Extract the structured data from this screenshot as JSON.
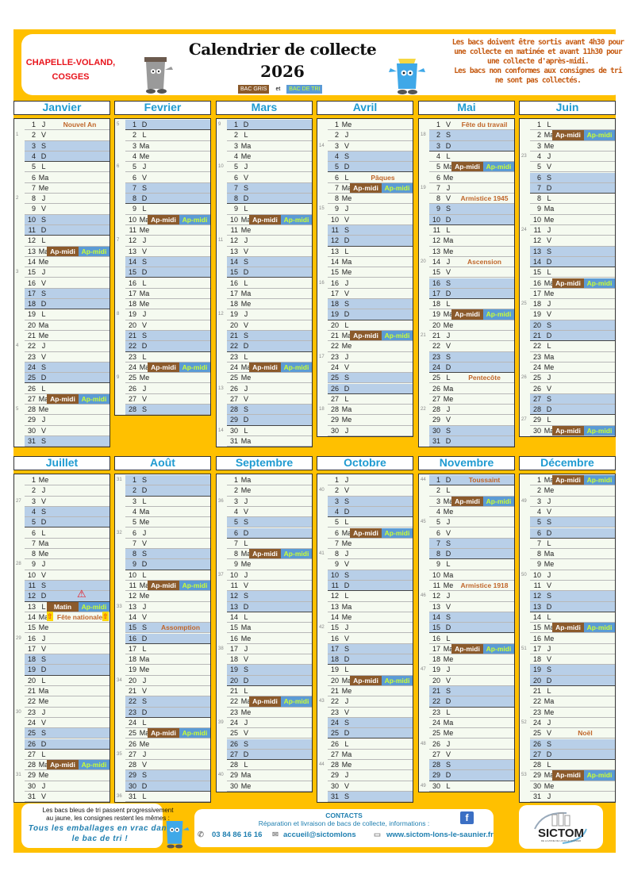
{
  "header": {
    "commune_line1": "CHAPELLE-VOLAND,",
    "commune_line2": "COSGES",
    "title": "Calendrier de collecte",
    "year": "2026",
    "legend_gris": "BAC GRIS",
    "legend_et": "et",
    "legend_tri": "BAC DE TRI",
    "notice": [
      "Les bacs doivent être sortis avant 4h30 pour",
      "une collecte en matinée et avant 11h30 pour",
      "une collecte d'après-midi.",
      "Les bacs non conformes aux consignes de tri",
      "ne sont pas collectés."
    ]
  },
  "colors": {
    "frame": "#ffc000",
    "bac_gris": "#8b5a2b",
    "bac_tri": "#5b9bd5",
    "weekend": "#b8cfe8",
    "holiday": "#c0662a",
    "month_title": "#1f9bd1"
  },
  "weekdays": [
    "L",
    "Ma",
    "Me",
    "J",
    "V",
    "S",
    "D"
  ],
  "months": [
    {
      "name": "Janvier",
      "length": 31,
      "first_weekday": "J",
      "weeks": [
        1,
        2,
        3,
        4,
        5
      ],
      "events": [
        {
          "day": 1,
          "holiday": "Nouvel An"
        },
        {
          "day": 13,
          "gris": "Ap-midi",
          "tri": "Ap-midi"
        },
        {
          "day": 27,
          "gris": "Ap-midi",
          "tri": "Ap-midi"
        }
      ]
    },
    {
      "name": "Fevrier",
      "length": 28,
      "first_weekday": "D",
      "weeks": [
        5,
        6,
        7,
        8,
        9
      ],
      "events": [
        {
          "day": 10,
          "gris": "Ap-midi",
          "tri": "Ap-midi"
        },
        {
          "day": 24,
          "gris": "Ap-midi",
          "tri": "Ap-midi"
        }
      ]
    },
    {
      "name": "Mars",
      "length": 31,
      "first_weekday": "D",
      "weeks": [
        9,
        10,
        11,
        12,
        13,
        14
      ],
      "events": [
        {
          "day": 10,
          "gris": "Ap-midi",
          "tri": "Ap-midi"
        },
        {
          "day": 24,
          "gris": "Ap-midi",
          "tri": "Ap-midi"
        }
      ]
    },
    {
      "name": "Avril",
      "length": 30,
      "first_weekday": "Me",
      "weeks": [
        14,
        15,
        16,
        17,
        18
      ],
      "events": [
        {
          "day": 6,
          "holiday": "Pâques"
        },
        {
          "day": 7,
          "gris": "Ap-midi",
          "tri": "Ap-midi"
        },
        {
          "day": 21,
          "gris": "Ap-midi",
          "tri": "Ap-midi"
        }
      ]
    },
    {
      "name": "Mai",
      "length": 31,
      "first_weekday": "V",
      "weeks": [
        18,
        19,
        20,
        21,
        22
      ],
      "events": [
        {
          "day": 1,
          "holiday": "Fête du travail"
        },
        {
          "day": 5,
          "gris": "Ap-midi",
          "tri": "Ap-midi"
        },
        {
          "day": 8,
          "holiday": "Armistice 1945"
        },
        {
          "day": 14,
          "holiday": "Ascension"
        },
        {
          "day": 19,
          "gris": "Ap-midi",
          "tri": "Ap-midi"
        },
        {
          "day": 25,
          "holiday": "Pentecôte"
        }
      ]
    },
    {
      "name": "Juin",
      "length": 30,
      "first_weekday": "L",
      "weeks": [
        23,
        24,
        25,
        26,
        27
      ],
      "events": [
        {
          "day": 2,
          "gris": "Ap-midi",
          "tri": "Ap-midi"
        },
        {
          "day": 16,
          "gris": "Ap-midi",
          "tri": "Ap-midi"
        },
        {
          "day": 30,
          "gris": "Ap-midi",
          "tri": "Ap-midi"
        }
      ]
    },
    {
      "name": "Juillet",
      "length": 31,
      "first_weekday": "Me",
      "weeks": [
        27,
        28,
        29,
        30,
        31
      ],
      "events": [
        {
          "day": 12,
          "warning": true
        },
        {
          "day": 13,
          "gris": "Matin",
          "tri": "Ap-midi"
        },
        {
          "day": 14,
          "holiday": "Fête nationale",
          "arrows": true
        },
        {
          "day": 28,
          "gris": "Ap-midi",
          "tri": "Ap-midi"
        }
      ]
    },
    {
      "name": "Août",
      "length": 31,
      "first_weekday": "S",
      "weeks": [
        31,
        32,
        33,
        34,
        35,
        36
      ],
      "events": [
        {
          "day": 11,
          "gris": "Ap-midi",
          "tri": "Ap-midi"
        },
        {
          "day": 15,
          "holiday": "Assomption"
        },
        {
          "day": 25,
          "gris": "Ap-midi",
          "tri": "Ap-midi"
        }
      ]
    },
    {
      "name": "Septembre",
      "length": 30,
      "first_weekday": "Ma",
      "weeks": [
        36,
        37,
        38,
        39,
        40
      ],
      "events": [
        {
          "day": 8,
          "gris": "Ap-midi",
          "tri": "Ap-midi"
        },
        {
          "day": 22,
          "gris": "Ap-midi",
          "tri": "Ap-midi"
        }
      ]
    },
    {
      "name": "Octobre",
      "length": 31,
      "first_weekday": "J",
      "weeks": [
        40,
        41,
        42,
        43,
        44
      ],
      "events": [
        {
          "day": 6,
          "gris": "Ap-midi",
          "tri": "Ap-midi"
        },
        {
          "day": 20,
          "gris": "Ap-midi",
          "tri": "Ap-midi"
        }
      ]
    },
    {
      "name": "Novembre",
      "length": 30,
      "first_weekday": "D",
      "weeks": [
        44,
        45,
        46,
        47,
        48,
        49
      ],
      "events": [
        {
          "day": 1,
          "holiday": "Toussaint"
        },
        {
          "day": 3,
          "gris": "Ap-midi",
          "tri": "Ap-midi"
        },
        {
          "day": 11,
          "holiday": "Armistice 1918"
        },
        {
          "day": 17,
          "gris": "Ap-midi",
          "tri": "Ap-midi"
        }
      ]
    },
    {
      "name": "Décembre",
      "length": 31,
      "first_weekday": "Ma",
      "weeks": [
        49,
        50,
        51,
        52,
        53
      ],
      "events": [
        {
          "day": 1,
          "gris": "Ap-midi",
          "tri": "Ap-midi"
        },
        {
          "day": 15,
          "gris": "Ap-midi",
          "tri": "Ap-midi"
        },
        {
          "day": 25,
          "holiday": "Noël"
        },
        {
          "day": 29,
          "gris": "Ap-midi",
          "tri": "Ap-midi"
        }
      ]
    }
  ],
  "footer": {
    "info_line1": "Les bacs bleus de tri passent progressivement",
    "info_line2": "au jaune, les consignes restent les mêmes :",
    "slogan_line1": "Tous les emballages en vrac dans",
    "slogan_line2": "le bac de tri !",
    "contacts_title": "CONTACTS",
    "contacts_subtitle": "Réparation et livraison de bacs de collecte, informations :",
    "phone": "03 84 86 16 16",
    "email": "accueil@sictomlons",
    "website": "www.sictom-lons-le-saunier.fr",
    "logo_text": "SICTOM",
    "logo_subtext": "DE LA ZONE DE LONS LE SAUNIER"
  }
}
